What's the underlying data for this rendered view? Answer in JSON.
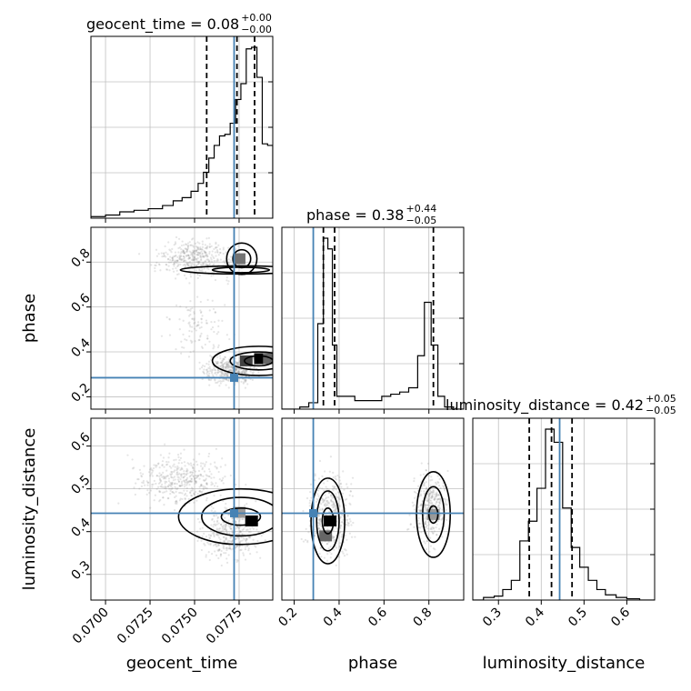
{
  "chart_data": {
    "type": "corner",
    "parameters": [
      "geocent_time",
      "phase",
      "luminosity_distance"
    ],
    "truths": {
      "geocent_time": 0.07722,
      "phase": 0.285,
      "luminosity_distance": 0.443
    },
    "colors": {
      "truth": "#4682b4",
      "hist": "#000000",
      "grid": "#c0c0c0",
      "axis": "#000000",
      "scatter": "#8a8a8a"
    },
    "titles": {
      "geocent_time": {
        "name": "geocent_time",
        "value": "0.08",
        "plus": "+0.00",
        "minus": "−0.00"
      },
      "phase": {
        "name": "phase",
        "value": "0.38",
        "plus": "+0.44",
        "minus": "−0.05"
      },
      "luminosity_distance": {
        "name": "luminosity_distance",
        "value": "0.42",
        "plus": "+0.05",
        "minus": "−0.05"
      }
    },
    "quantile_lines": {
      "geocent_time": [
        0.07568,
        0.07738,
        0.07837
      ],
      "phase": [
        0.33,
        0.38,
        0.82
      ],
      "luminosity_distance": [
        0.372,
        0.424,
        0.472
      ]
    },
    "axes": {
      "geocent_time": {
        "range": [
          0.06918,
          0.07939
        ],
        "ticks": [
          0.07,
          0.0725,
          0.075,
          0.0775
        ],
        "tick_labels": [
          "0.0700",
          "0.0725",
          "0.0750",
          "0.0775"
        ],
        "xlabel": "geocent_time"
      },
      "phase": {
        "range": [
          0.145,
          0.955
        ],
        "ticks": [
          0.2,
          0.4,
          0.6,
          0.8
        ],
        "tick_labels": [
          "0.2",
          "0.4",
          "0.6",
          "0.8"
        ],
        "xlabel": "phase",
        "ylabel": "phase"
      },
      "luminosity_distance": {
        "range": [
          0.24,
          0.665
        ],
        "ticks": [
          0.3,
          0.4,
          0.5,
          0.6
        ],
        "tick_labels": [
          "0.3",
          "0.4",
          "0.5",
          "0.6"
        ],
        "xlabel": "luminosity_distance",
        "ylabel": "luminosity_distance"
      }
    },
    "histograms": {
      "geocent_time": {
        "bin_edges": [
          0.06918,
          0.07,
          0.0708,
          0.0716,
          0.0724,
          0.0732,
          0.0738,
          0.0743,
          0.0748,
          0.0752,
          0.0755,
          0.0758,
          0.0761,
          0.0764,
          0.0767,
          0.077,
          0.0773,
          0.0776,
          0.0779,
          0.0782,
          0.0785,
          0.0788,
          0.0791,
          0.07939
        ],
        "counts": [
          1,
          2,
          4,
          5,
          6,
          8,
          11,
          13,
          17,
          22,
          29,
          38,
          46,
          52,
          53,
          60,
          75,
          85,
          107,
          108,
          89,
          47,
          46
        ]
      },
      "phase": {
        "bin_edges": [
          0.145,
          0.185,
          0.225,
          0.265,
          0.305,
          0.33,
          0.35,
          0.37,
          0.39,
          0.43,
          0.47,
          0.51,
          0.55,
          0.59,
          0.63,
          0.67,
          0.71,
          0.75,
          0.78,
          0.81,
          0.84,
          0.87,
          0.91,
          0.955
        ],
        "counts": [
          0,
          0,
          1,
          3,
          40,
          80,
          75,
          30,
          6,
          6,
          4,
          4,
          4,
          6,
          7,
          8,
          10,
          25,
          50,
          30,
          6,
          1,
          0
        ]
      },
      "luminosity_distance": {
        "bin_edges": [
          0.24,
          0.265,
          0.29,
          0.31,
          0.33,
          0.35,
          0.37,
          0.39,
          0.41,
          0.43,
          0.45,
          0.47,
          0.49,
          0.51,
          0.53,
          0.55,
          0.575,
          0.6,
          0.63,
          0.665
        ],
        "counts": [
          0,
          2,
          3,
          8,
          15,
          45,
          60,
          85,
          130,
          120,
          70,
          40,
          25,
          15,
          8,
          4,
          2,
          1,
          0
        ]
      }
    },
    "scatter_clusters": [
      {
        "panel": "geocent_time|phase",
        "x": [
          0.0715,
          0.0785
        ],
        "y": [
          0.68,
          0.95
        ],
        "n": 420,
        "seed": 11
      },
      {
        "panel": "geocent_time|phase",
        "x": [
          0.0745,
          0.0795
        ],
        "y": [
          0.22,
          0.42
        ],
        "n": 420,
        "seed": 13
      },
      {
        "panel": "geocent_time|phase",
        "x": [
          0.0725,
          0.078
        ],
        "y": [
          0.3,
          0.72
        ],
        "n": 110,
        "seed": 17
      },
      {
        "panel": "geocent_time|luminosity_distance",
        "x": [
          0.07,
          0.0785
        ],
        "y": [
          0.42,
          0.62
        ],
        "n": 420,
        "seed": 19
      },
      {
        "panel": "geocent_time|luminosity_distance",
        "x": [
          0.0745,
          0.0795
        ],
        "y": [
          0.29,
          0.5
        ],
        "n": 380,
        "seed": 23
      },
      {
        "panel": "phase|luminosity_distance",
        "x": [
          0.2,
          0.52
        ],
        "y": [
          0.28,
          0.6
        ],
        "n": 420,
        "seed": 29
      },
      {
        "panel": "phase|luminosity_distance",
        "x": [
          0.68,
          0.93
        ],
        "y": [
          0.32,
          0.6
        ],
        "n": 360,
        "seed": 31
      }
    ],
    "contours": [
      {
        "panel": "geocent_time|phase",
        "cx": 0.07765,
        "cy": 0.815,
        "rx": [
          0.00085,
          0.0005
        ],
        "ry": [
          0.07,
          0.04
        ]
      },
      {
        "panel": "geocent_time|phase",
        "cx": 0.0776,
        "cy": 0.765,
        "rx": [
          0.0034,
          0.0016
        ],
        "ry": [
          0.018,
          0.012
        ]
      },
      {
        "panel": "geocent_time|phase",
        "cx": 0.0786,
        "cy": 0.36,
        "rx": [
          0.0026,
          0.0016,
          0.0008
        ],
        "ry": [
          0.065,
          0.04,
          0.022
        ]
      },
      {
        "panel": "geocent_time|luminosity_distance",
        "cx": 0.0776,
        "cy": 0.435,
        "rx": [
          0.0035,
          0.0022,
          0.0011
        ],
        "ry": [
          0.065,
          0.045,
          0.02
        ]
      },
      {
        "panel": "phase|luminosity_distance",
        "cx": 0.35,
        "cy": 0.425,
        "rx": [
          0.075,
          0.05,
          0.025
        ],
        "ry": [
          0.1,
          0.07,
          0.03
        ]
      },
      {
        "panel": "phase|luminosity_distance",
        "cx": 0.82,
        "cy": 0.44,
        "rx": [
          0.075,
          0.048,
          0.02
        ],
        "ry": [
          0.1,
          0.065,
          0.02
        ]
      }
    ],
    "density_cells": [
      {
        "panel": "geocent_time|phase",
        "x": 0.0775,
        "y": 0.815,
        "level": 0.55
      },
      {
        "panel": "geocent_time|phase",
        "x": 0.0787,
        "y": 0.37,
        "level": 1.0
      },
      {
        "panel": "geocent_time|phase",
        "x": 0.0779,
        "y": 0.36,
        "level": 0.75
      },
      {
        "panel": "geocent_time|phase",
        "x": 0.0792,
        "y": 0.37,
        "level": 0.6
      },
      {
        "panel": "geocent_time|luminosity_distance",
        "x": 0.0782,
        "y": 0.425,
        "level": 1.0
      },
      {
        "panel": "geocent_time|luminosity_distance",
        "x": 0.0775,
        "y": 0.445,
        "level": 0.4
      },
      {
        "panel": "phase|luminosity_distance",
        "x": 0.36,
        "y": 0.425,
        "level": 1.0
      },
      {
        "panel": "phase|luminosity_distance",
        "x": 0.34,
        "y": 0.39,
        "level": 0.6
      },
      {
        "panel": "phase|luminosity_distance",
        "x": 0.82,
        "y": 0.44,
        "level": 0.4
      }
    ]
  }
}
